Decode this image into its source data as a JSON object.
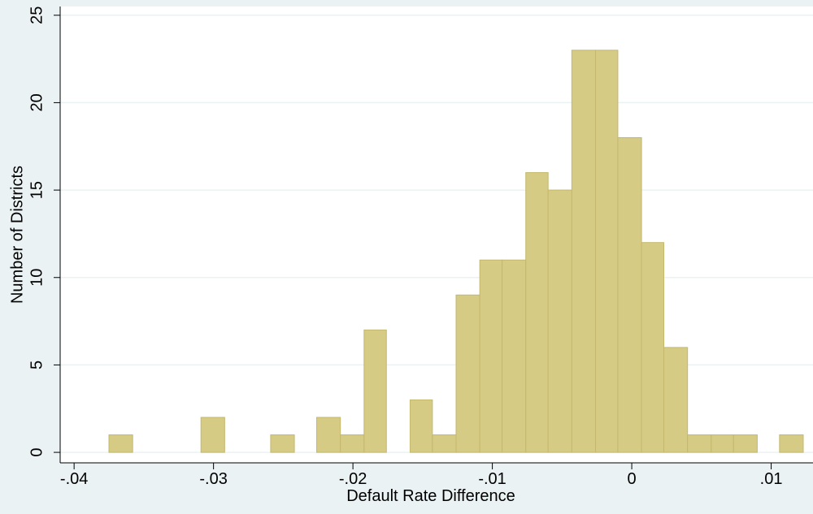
{
  "chart_data": {
    "type": "histogram",
    "xlabel": "Default Rate Difference",
    "ylabel": "Number of Districts",
    "bins": [
      -0.0375,
      -0.0358,
      -0.0342,
      -0.0325,
      -0.0309,
      -0.0292,
      -0.0275,
      -0.0259,
      -0.0242,
      -0.0226,
      -0.0209,
      -0.0192,
      -0.0176,
      -0.0159,
      -0.0143,
      -0.0126,
      -0.0109,
      -0.0093,
      -0.0076,
      -0.006,
      -0.0043,
      -0.0026,
      -0.001,
      0.0007,
      0.0023,
      0.004,
      0.0057,
      0.0073,
      0.009,
      0.0106,
      0.0123
    ],
    "values": [
      1,
      0,
      0,
      0,
      2,
      0,
      0,
      1,
      0,
      2,
      1,
      7,
      0,
      3,
      1,
      9,
      11,
      11,
      16,
      15,
      23,
      23,
      18,
      12,
      6,
      1,
      1,
      1,
      0,
      1
    ],
    "color": "#d6cb85",
    "xlim": [
      -0.041,
      0.013
    ],
    "ylim": [
      -0.6,
      25.5
    ],
    "xticks": [
      {
        "value": -0.04,
        "label": "-.04"
      },
      {
        "value": -0.03,
        "label": "-.03"
      },
      {
        "value": -0.02,
        "label": "-.02"
      },
      {
        "value": -0.01,
        "label": "-.01"
      },
      0,
      {
        "value": 0.01,
        "label": ".01"
      }
    ],
    "yticks": [
      0,
      5,
      10,
      15,
      20,
      25
    ],
    "grid": true
  }
}
